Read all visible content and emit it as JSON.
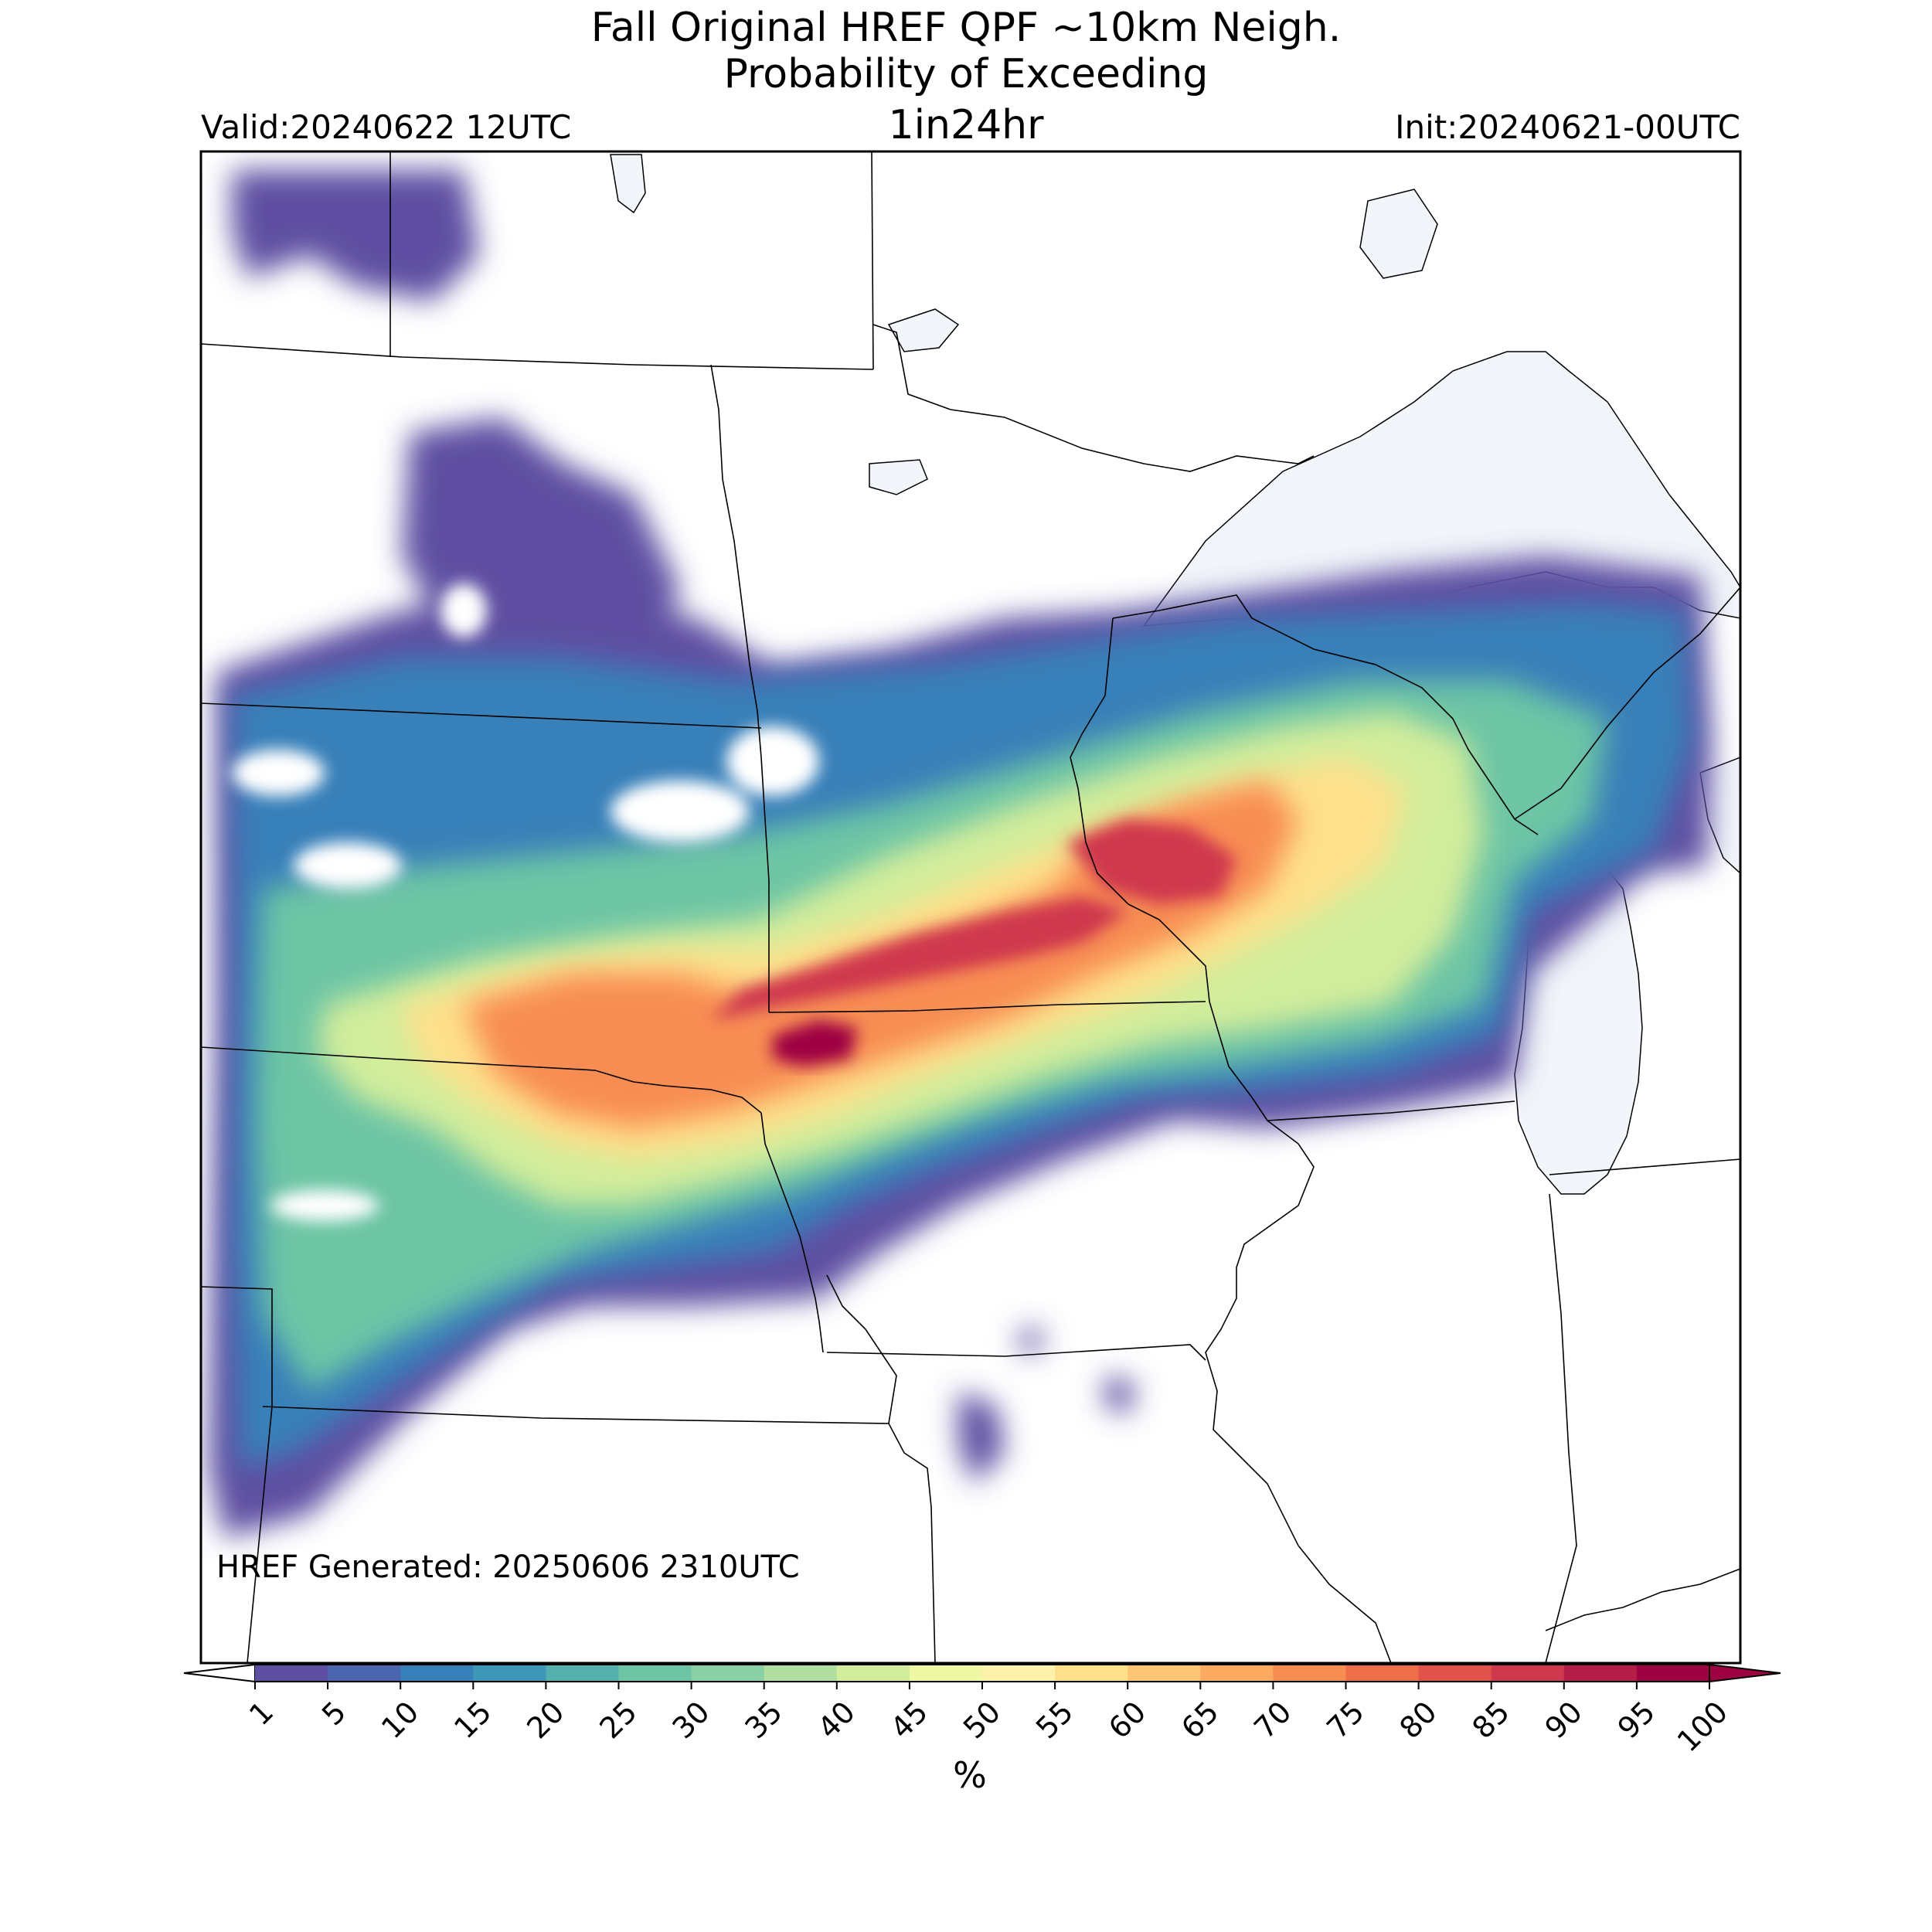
{
  "title": {
    "line1": "Fall Original HREF QPF ~10km Neigh.",
    "line2": "Probability of Exceeding",
    "line3": "1in24hr"
  },
  "valid_label": "Valid:20240622 12UTC",
  "init_label": "Init:20240621-00UTC",
  "generated_label": "HREF Generated: 20250606 2310UTC",
  "colorbar": {
    "unit_label": "%",
    "ticks": [
      "1",
      "5",
      "10",
      "15",
      "20",
      "25",
      "30",
      "35",
      "40",
      "45",
      "50",
      "55",
      "60",
      "65",
      "70",
      "75",
      "80",
      "85",
      "90",
      "95",
      "100"
    ],
    "colors": [
      "#5e4fa2",
      "#4b65ae",
      "#3880b9",
      "#3f97b7",
      "#55afad",
      "#6dc5a5",
      "#8ad0a4",
      "#b1dfa2",
      "#d2ed9b",
      "#eef8a3",
      "#fdf2aa",
      "#fee08b",
      "#fdc675",
      "#fcaa5f",
      "#f88d52",
      "#ef6e4a",
      "#e1524a",
      "#cf384d",
      "#b51e48",
      "#9e0142"
    ],
    "under_color": "#ffffff",
    "over_color": "#9e0142"
  },
  "map": {
    "lake_color": "#f2f5fa",
    "border_color": "#000000"
  }
}
